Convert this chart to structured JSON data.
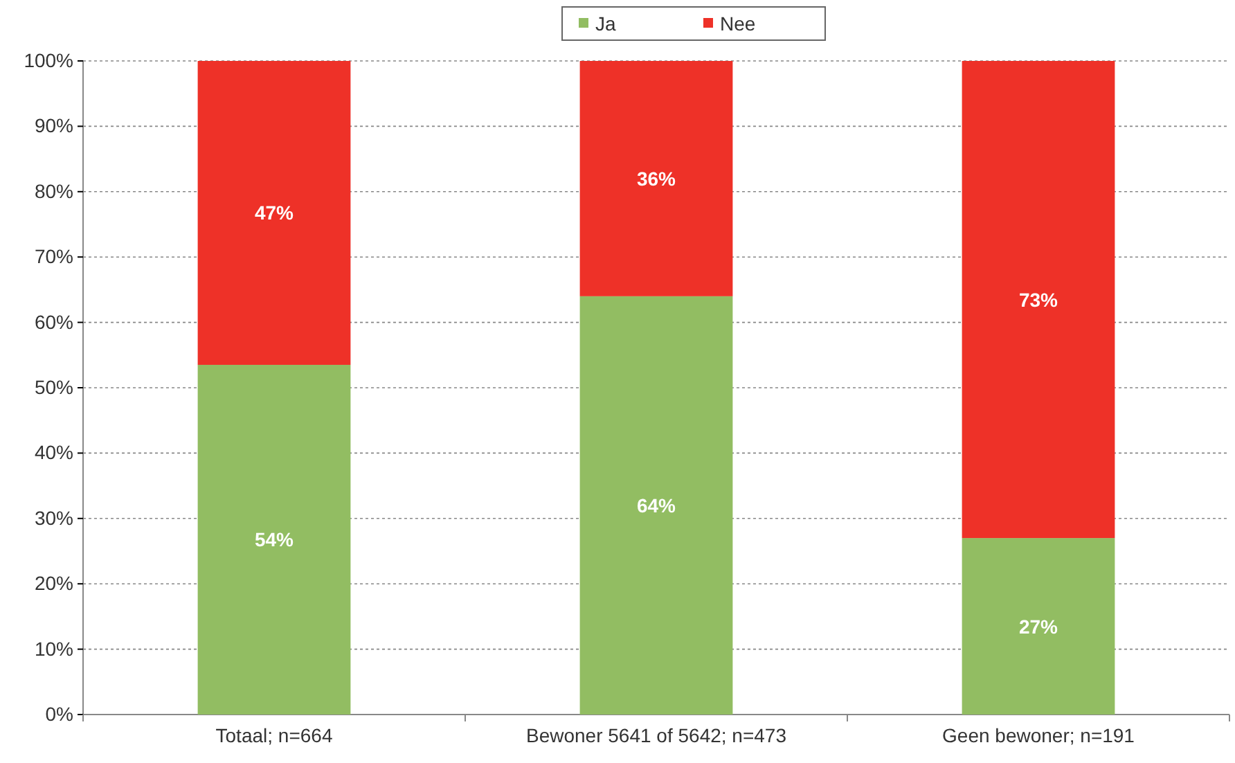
{
  "chart_data": {
    "type": "bar",
    "stacked": true,
    "categories": [
      "Totaal; n=664",
      "Bewoner 5641 of 5642; n=473",
      "Geen bewoner; n=191"
    ],
    "series": [
      {
        "name": "Ja",
        "color": "#92bd62",
        "values": [
          53.5,
          64,
          27
        ],
        "value_labels": [
          "54%",
          "64%",
          "27%"
        ]
      },
      {
        "name": "Nee",
        "color": "#ee3128",
        "values": [
          46.5,
          36,
          73
        ],
        "value_labels": [
          "47%",
          "36%",
          "73%"
        ]
      }
    ],
    "ylim": [
      0,
      100
    ],
    "yticks": [
      {
        "value": 0,
        "label": "0%"
      },
      {
        "value": 10,
        "label": "10%"
      },
      {
        "value": 20,
        "label": "20%"
      },
      {
        "value": 30,
        "label": "30%"
      },
      {
        "value": 40,
        "label": "40%"
      },
      {
        "value": 50,
        "label": "50%"
      },
      {
        "value": 60,
        "label": "60%"
      },
      {
        "value": 70,
        "label": "70%"
      },
      {
        "value": 80,
        "label": "80%"
      },
      {
        "value": 90,
        "label": "90%"
      },
      {
        "value": 100,
        "label": "100%"
      }
    ],
    "grid": "y",
    "legend": "top"
  }
}
